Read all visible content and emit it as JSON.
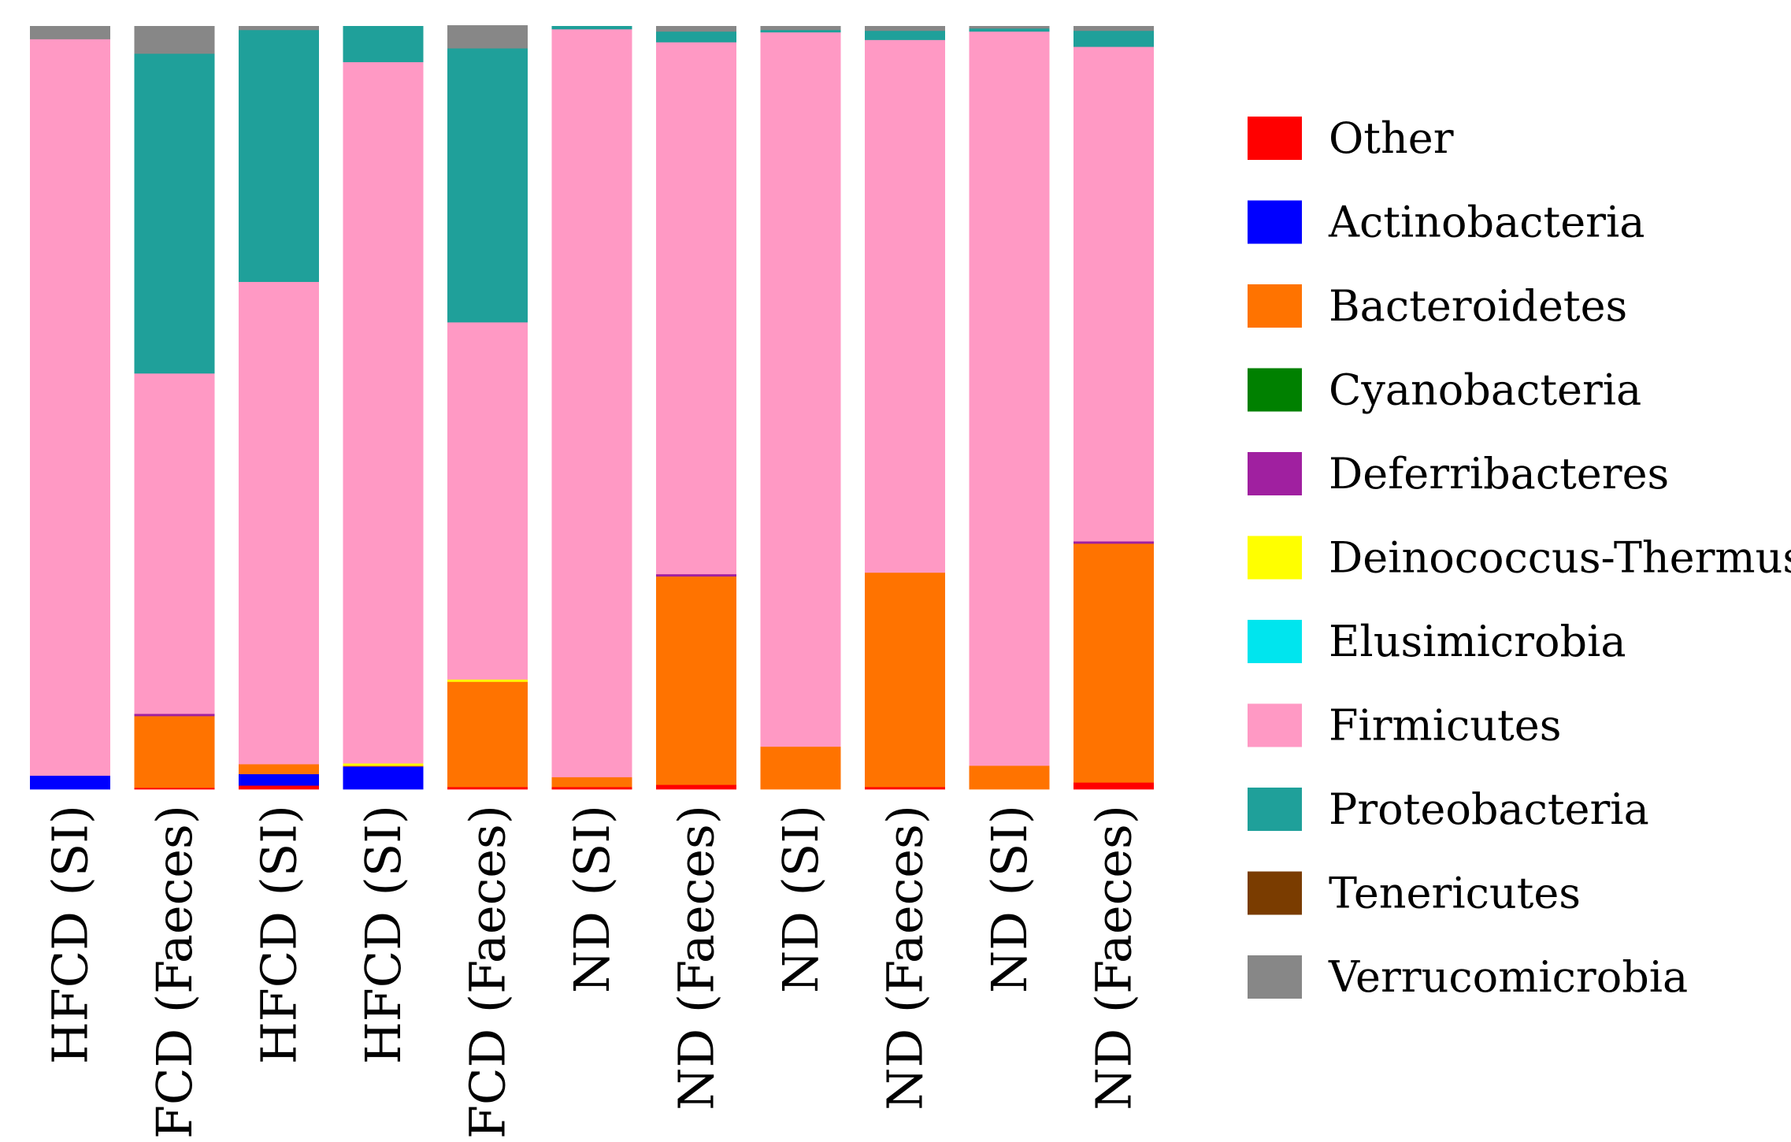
{
  "chart_data": {
    "type": "bar",
    "stacked": true,
    "normalized": true,
    "title": "",
    "xlabel": "",
    "ylabel": "",
    "ylim": [
      0,
      100
    ],
    "grid": false,
    "legend_position": "right",
    "categories": [
      "HFCD (SI)",
      "HFCD (Faeces)",
      "HFCD (SI)",
      "HFCD (SI)",
      "HFCD (Faeces)",
      "ND (SI)",
      "ND (Faeces)",
      "ND (SI)",
      "ND (Faeces)",
      "ND (SI)",
      "ND (Faeces)"
    ],
    "series": [
      {
        "name": "Other",
        "color": "#ff0000",
        "values": [
          0.0,
          0.2,
          0.5,
          0.0,
          0.3,
          0.3,
          0.6,
          0.0,
          0.3,
          0.0,
          0.9
        ]
      },
      {
        "name": "Actinobacteria",
        "color": "#0000ff",
        "values": [
          1.8,
          0.0,
          1.5,
          3.0,
          0.0,
          0.0,
          0.0,
          0.0,
          0.0,
          0.0,
          0.0
        ]
      },
      {
        "name": "Bacteroidetes",
        "color": "#ff7300",
        "values": [
          0.0,
          9.4,
          1.3,
          0.1,
          13.8,
          1.3,
          27.3,
          5.6,
          28.1,
          3.1,
          31.3
        ]
      },
      {
        "name": "Cyanobacteria",
        "color": "#008000",
        "values": [
          0.0,
          0.0,
          0.0,
          0.0,
          0.0,
          0.0,
          0.0,
          0.0,
          0.0,
          0.0,
          0.0
        ]
      },
      {
        "name": "Deferribacteres",
        "color": "#a020a0",
        "values": [
          0.0,
          0.3,
          0.0,
          0.0,
          0.0,
          0.0,
          0.3,
          0.0,
          0.0,
          0.0,
          0.3
        ]
      },
      {
        "name": "Deinococcus-Thermus",
        "color": "#ffff00",
        "values": [
          0.0,
          0.0,
          0.0,
          0.3,
          0.3,
          0.0,
          0.0,
          0.0,
          0.0,
          0.0,
          0.0
        ]
      },
      {
        "name": "Elusimicrobia",
        "color": "#00e5ee",
        "values": [
          0.0,
          0.0,
          0.0,
          0.0,
          0.0,
          0.0,
          0.0,
          0.0,
          0.0,
          0.0,
          0.0
        ]
      },
      {
        "name": "Firmicutes",
        "color": "#ff99c4",
        "values": [
          96.5,
          44.6,
          63.2,
          91.9,
          46.8,
          98.0,
          69.7,
          93.6,
          69.8,
          96.2,
          64.8
        ]
      },
      {
        "name": "Proteobacteria",
        "color": "#1fa09a",
        "values": [
          0.0,
          41.9,
          33.0,
          4.7,
          35.9,
          0.4,
          1.4,
          0.3,
          1.2,
          0.4,
          2.1
        ]
      },
      {
        "name": "Tenericutes",
        "color": "#7a3c00",
        "values": [
          0.0,
          0.0,
          0.0,
          0.0,
          0.0,
          0.0,
          0.0,
          0.0,
          0.0,
          0.0,
          0.0
        ]
      },
      {
        "name": "Verrucomicrobia",
        "color": "#878787",
        "values": [
          1.7,
          3.6,
          0.5,
          0.0,
          3.0,
          0.0,
          0.7,
          0.5,
          0.6,
          0.3,
          0.6
        ]
      }
    ]
  }
}
